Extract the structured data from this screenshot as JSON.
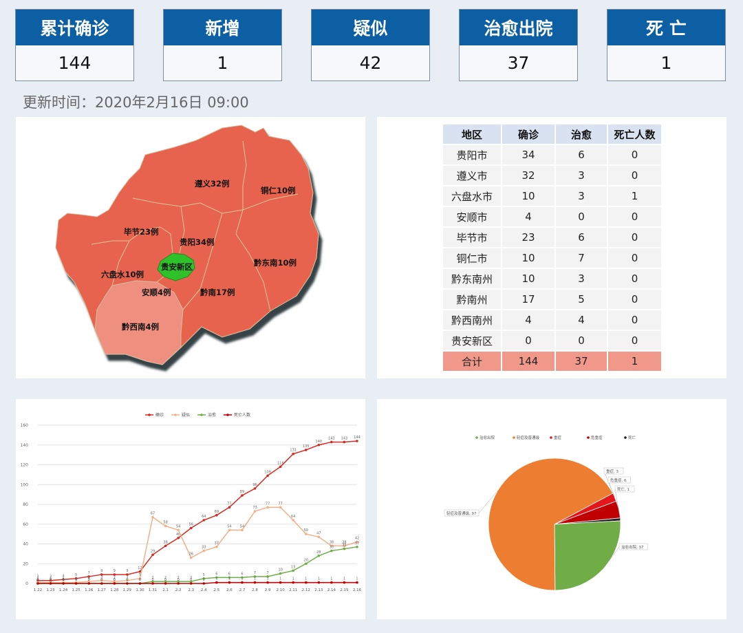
{
  "stats": [
    {
      "label": "累计确诊",
      "value": "144"
    },
    {
      "label": "新增",
      "value": "1"
    },
    {
      "label": "疑似",
      "value": "42"
    },
    {
      "label": "治愈出院",
      "value": "37"
    },
    {
      "label": "死 亡",
      "value": "1"
    }
  ],
  "update_time": "更新时间：2020年2月16日  09:00",
  "map": {
    "colors": {
      "region": "#e8644e",
      "region_light": "#ef8f80",
      "guian": "#2fc12a",
      "shadow": "#2a3a3c"
    },
    "labels": [
      {
        "name": "遵义32例"
      },
      {
        "name": "铜仁10例"
      },
      {
        "name": "毕节23例"
      },
      {
        "name": "贵阳34例"
      },
      {
        "name": "贵安新区"
      },
      {
        "name": "六盘水10例"
      },
      {
        "name": "黔东南10例"
      },
      {
        "name": "安顺4例"
      },
      {
        "name": "黔南17例"
      },
      {
        "name": "黔西南4例"
      }
    ]
  },
  "table": {
    "headers": [
      "地区",
      "确诊",
      "治愈",
      "死亡人数"
    ],
    "rows": [
      [
        "贵阳市",
        "34",
        "6",
        "0"
      ],
      [
        "遵义市",
        "32",
        "3",
        "0"
      ],
      [
        "六盘水市",
        "10",
        "3",
        "1"
      ],
      [
        "安顺市",
        "4",
        "0",
        "0"
      ],
      [
        "毕节市",
        "23",
        "6",
        "0"
      ],
      [
        "铜仁市",
        "10",
        "7",
        "0"
      ],
      [
        "黔东南州",
        "10",
        "3",
        "0"
      ],
      [
        "黔南州",
        "17",
        "5",
        "0"
      ],
      [
        "黔西南州",
        "4",
        "4",
        "0"
      ],
      [
        "贵安新区",
        "0",
        "0",
        "0"
      ]
    ],
    "total": [
      "合计",
      "144",
      "37",
      "1"
    ]
  },
  "chart_data": [
    {
      "type": "line",
      "x": [
        "1.22",
        "1.23",
        "1.24",
        "1.25",
        "1.26",
        "1.27",
        "1.28",
        "1.29",
        "1.30",
        "1.31",
        "2.1",
        "2.2",
        "2.3",
        "2.4",
        "2.5",
        "2.6",
        "2.7",
        "2.8",
        "2.9",
        "2.10",
        "2.11",
        "2.12",
        "2.13",
        "2.14",
        "2.15",
        "2.16"
      ],
      "ylim": [
        0,
        160
      ],
      "yticks": [
        0,
        20,
        40,
        60,
        80,
        100,
        120,
        140,
        160
      ],
      "grid": true,
      "legend": "top",
      "series": [
        {
          "name": "确诊",
          "color": "#d42a20",
          "values": [
            3,
            3,
            4,
            5,
            7,
            9,
            9,
            9,
            12,
            29,
            38,
            46,
            56,
            64,
            69,
            77,
            89,
            96,
            109,
            118,
            131,
            135,
            140,
            143,
            143,
            144
          ]
        },
        {
          "name": "疑似",
          "color": "#f2b089",
          "values": [
            1,
            1,
            1,
            1,
            2,
            3,
            2,
            3,
            5,
            67,
            58,
            54,
            26,
            33,
            37,
            54,
            54,
            73,
            77,
            77,
            64,
            50,
            47,
            38,
            38,
            42
          ]
        },
        {
          "name": "治愈",
          "color": "#70ad47",
          "values": [
            0,
            0,
            0,
            0,
            0,
            0,
            0,
            0,
            0,
            2,
            2,
            2,
            2,
            5,
            6,
            6,
            6,
            7,
            7,
            10,
            13,
            20,
            28,
            33,
            35,
            37
          ]
        },
        {
          "name": "死亡人数",
          "color": "#c00000",
          "values": [
            0,
            0,
            0,
            0,
            0,
            0,
            0,
            0,
            0,
            0,
            0,
            0,
            0,
            0,
            1,
            1,
            1,
            1,
            1,
            1,
            1,
            1,
            1,
            1,
            1,
            1
          ]
        }
      ]
    },
    {
      "type": "pie",
      "legend": "top",
      "slices": [
        {
          "name": "治愈出院",
          "value": 37,
          "label": "治愈出院, 37",
          "color": "#70ad47"
        },
        {
          "name": "轻症及普通级",
          "value": 97,
          "label": "轻症及普通级, 97",
          "color": "#ed7d31"
        },
        {
          "name": "重症",
          "value": 3,
          "label": "重症, 3",
          "color": "#e3161b"
        },
        {
          "name": "危重症",
          "value": 6,
          "label": "危重症, 6",
          "color": "#c00000"
        },
        {
          "name": "死亡",
          "value": 1,
          "label": "死亡, 1",
          "color": "#222222"
        }
      ]
    }
  ]
}
